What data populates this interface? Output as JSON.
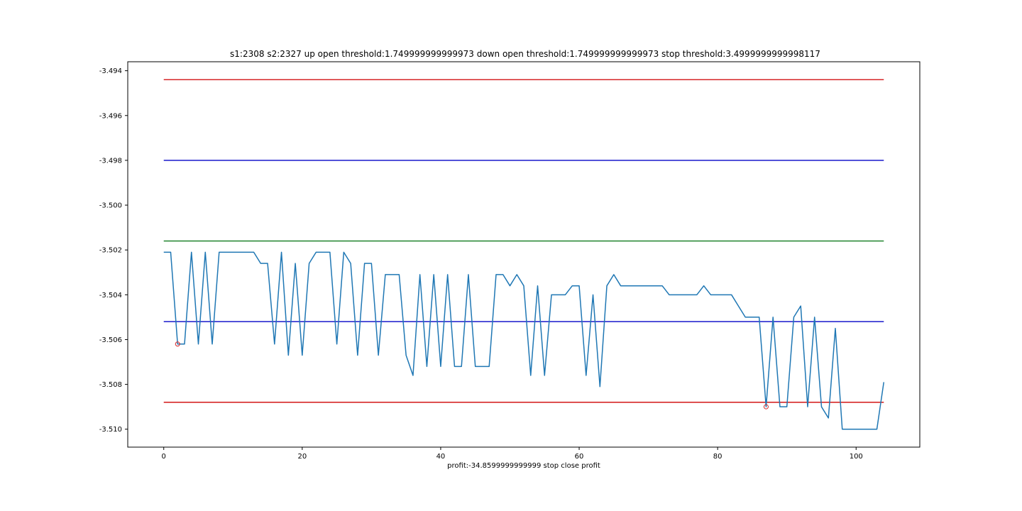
{
  "chart_data": {
    "type": "line",
    "title": "s1:2308 s2:2327 up open threshold:1.749999999999973 down open threshold:1.749999999999973 stop threshold:3.4999999999998117",
    "xlabel": "profit:-34.8599999999999 stop close profit",
    "ylabel": "",
    "xlim": [
      -5.2,
      109.2
    ],
    "ylim": [
      -3.5108,
      -3.4936
    ],
    "x_ticks": [
      0,
      20,
      40,
      60,
      80,
      100
    ],
    "y_ticks": [
      -3.494,
      -3.496,
      -3.498,
      -3.5,
      -3.502,
      -3.504,
      -3.506,
      -3.508,
      -3.51
    ],
    "y_tick_labels": [
      "-3.494",
      "-3.496",
      "-3.498",
      "-3.500",
      "-3.502",
      "-3.504",
      "-3.506",
      "-3.508",
      "-3.510"
    ],
    "grid": false,
    "hlines": [
      {
        "y": -3.4944,
        "color": "#d62728",
        "x_range": [
          0,
          104
        ]
      },
      {
        "y": -3.498,
        "color": "#2a2ad0",
        "x_range": [
          0,
          104
        ]
      },
      {
        "y": -3.5016,
        "color": "#2e8b3a",
        "x_range": [
          0,
          104
        ]
      },
      {
        "y": -3.5052,
        "color": "#2a2ad0",
        "x_range": [
          0,
          104
        ]
      },
      {
        "y": -3.5088,
        "color": "#d62728",
        "x_range": [
          0,
          104
        ]
      }
    ],
    "series": [
      {
        "color": "#1f77b4",
        "x": [
          0,
          1,
          2,
          3,
          4,
          5,
          6,
          7,
          8,
          9,
          10,
          11,
          12,
          13,
          14,
          15,
          16,
          17,
          18,
          19,
          20,
          21,
          22,
          23,
          24,
          25,
          26,
          27,
          28,
          29,
          30,
          31,
          32,
          33,
          34,
          35,
          36,
          37,
          38,
          39,
          40,
          41,
          42,
          43,
          44,
          45,
          46,
          47,
          48,
          49,
          50,
          51,
          52,
          53,
          54,
          55,
          56,
          57,
          58,
          59,
          60,
          61,
          62,
          63,
          64,
          65,
          66,
          67,
          68,
          69,
          70,
          71,
          72,
          73,
          74,
          75,
          76,
          77,
          78,
          79,
          80,
          81,
          82,
          83,
          84,
          85,
          86,
          87,
          88,
          89,
          90,
          91,
          92,
          93,
          94,
          95,
          96,
          97,
          98,
          99,
          100,
          101,
          102,
          103,
          104
        ],
        "values": [
          -3.5021,
          -3.5021,
          -3.5062,
          -3.5062,
          -3.5021,
          -3.5062,
          -3.5021,
          -3.5062,
          -3.5021,
          -3.5021,
          -3.5021,
          -3.5021,
          -3.5021,
          -3.5021,
          -3.5026,
          -3.5026,
          -3.5062,
          -3.5021,
          -3.5067,
          -3.5026,
          -3.5067,
          -3.5026,
          -3.5021,
          -3.5021,
          -3.5021,
          -3.5062,
          -3.5021,
          -3.5026,
          -3.5067,
          -3.5026,
          -3.5026,
          -3.5067,
          -3.5031,
          -3.5031,
          -3.5031,
          -3.5067,
          -3.5076,
          -3.5031,
          -3.5072,
          -3.5031,
          -3.5072,
          -3.5031,
          -3.5072,
          -3.5072,
          -3.5031,
          -3.5072,
          -3.5072,
          -3.5072,
          -3.5031,
          -3.5031,
          -3.5036,
          -3.5031,
          -3.5036,
          -3.5076,
          -3.5036,
          -3.5076,
          -3.504,
          -3.504,
          -3.504,
          -3.5036,
          -3.5036,
          -3.5076,
          -3.504,
          -3.5081,
          -3.5036,
          -3.5031,
          -3.5036,
          -3.5036,
          -3.5036,
          -3.5036,
          -3.5036,
          -3.5036,
          -3.5036,
          -3.504,
          -3.504,
          -3.504,
          -3.504,
          -3.504,
          -3.5036,
          -3.504,
          -3.504,
          -3.504,
          -3.504,
          -3.5045,
          -3.505,
          -3.505,
          -3.505,
          -3.509,
          -3.505,
          -3.509,
          -3.509,
          -3.505,
          -3.5045,
          -3.509,
          -3.505,
          -3.509,
          -3.5095,
          -3.5055,
          -3.51,
          -3.51,
          -3.51,
          -3.51,
          -3.51,
          -3.51,
          -3.5079
        ]
      }
    ],
    "markers": [
      {
        "x": 2,
        "y": -3.5062,
        "color": "#d62728",
        "style": "open-circle"
      },
      {
        "x": 87,
        "y": -3.509,
        "color": "#d62728",
        "style": "open-circle"
      }
    ]
  }
}
